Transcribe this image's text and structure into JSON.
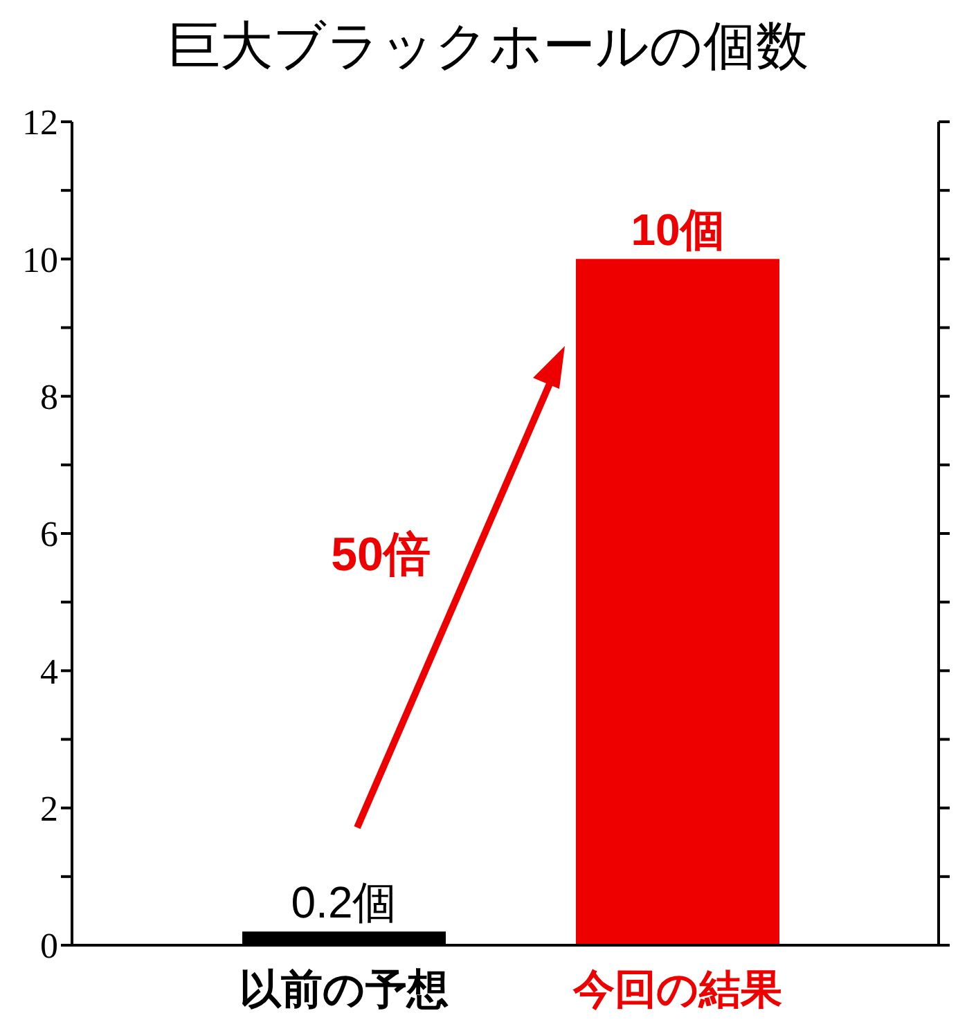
{
  "chart_data": {
    "type": "bar",
    "title": "巨大ブラックホールの個数",
    "categories": [
      "以前の予想",
      "今回の結果"
    ],
    "values": [
      0.2,
      10
    ],
    "colors": [
      "#000000",
      "#ee0000"
    ],
    "value_labels": [
      "0.2個",
      "10個"
    ],
    "annotations": [
      "50倍"
    ],
    "ylim": [
      0,
      12
    ],
    "yticks": [
      0,
      {
        "value": 1,
        "label": null
      },
      2,
      {
        "value": 3,
        "label": null
      },
      4,
      {
        "value": 5,
        "label": null
      },
      6,
      {
        "value": 7,
        "label": null
      },
      8,
      {
        "value": 9,
        "label": null
      },
      10,
      {
        "value": 11,
        "label": null
      },
      12
    ],
    "grid": false,
    "legend": false
  }
}
